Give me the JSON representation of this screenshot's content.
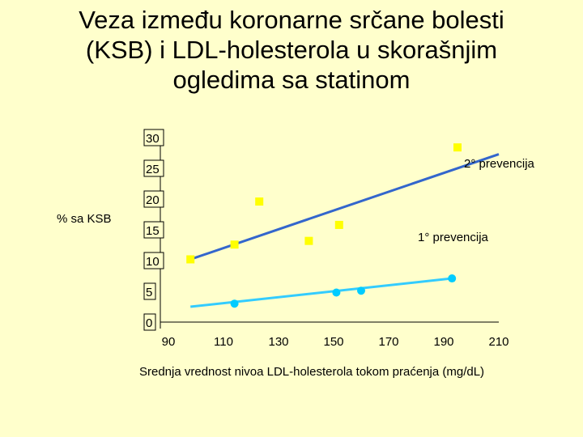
{
  "title_lines": [
    "Veza između koronarne srčane bolesti",
    "(KSB) i LDL-holesterola u skorašnjim",
    "ogledima sa statinom"
  ],
  "chart_data": {
    "type": "scatter",
    "xlabel": "Srednja vrednost nivoa LDL-holesterola tokom praćenja (mg/dL)",
    "ylabel": "% sa KSB",
    "xlim": [
      90,
      210
    ],
    "ylim": [
      0,
      30
    ],
    "xticks": [
      "90",
      "110",
      "130",
      "150",
      "170",
      "190",
      "210"
    ],
    "yticks": [
      "0",
      "5",
      "10",
      "15",
      "20",
      "25",
      "30"
    ],
    "grid": false,
    "series": [
      {
        "name": "2° prevencija",
        "marker": "square",
        "color": "#ffff00",
        "line_color": "#3366cc",
        "points": [
          [
            98,
            10.2
          ],
          [
            114,
            12.6
          ],
          [
            123,
            19.6
          ],
          [
            141,
            13.2
          ],
          [
            152,
            15.8
          ],
          [
            195,
            28.4
          ]
        ],
        "trend": [
          [
            98,
            10.2
          ],
          [
            210,
            27.3
          ]
        ]
      },
      {
        "name": "1° prevencija",
        "marker": "circle",
        "color": "#00ccff",
        "line_color": "#33ccff",
        "points": [
          [
            114,
            3.0
          ],
          [
            151,
            4.8
          ],
          [
            160,
            5.1
          ],
          [
            193,
            7.1
          ]
        ],
        "trend": [
          [
            98,
            2.5
          ],
          [
            193,
            7.1
          ]
        ]
      }
    ]
  }
}
